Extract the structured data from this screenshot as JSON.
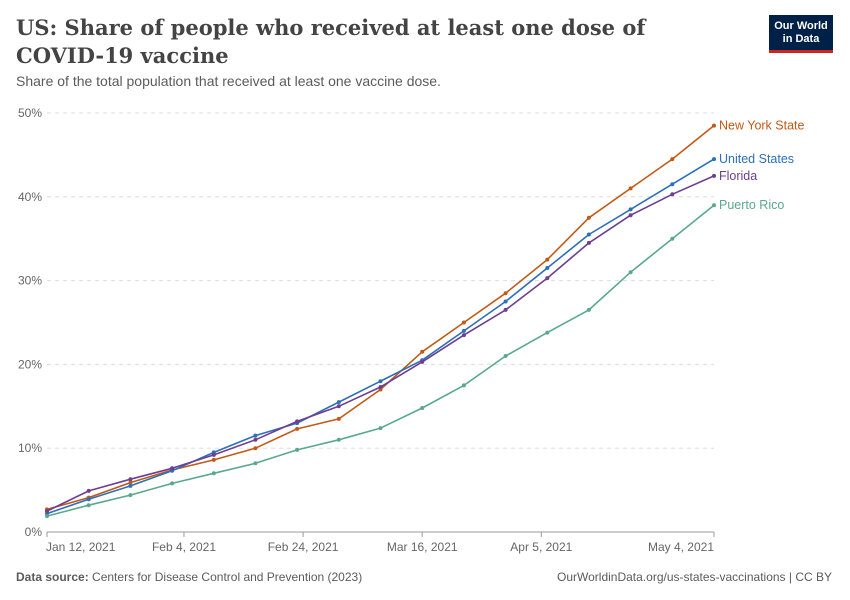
{
  "header": {
    "title": "US: Share of people who received at least one dose of COVID-19 vaccine",
    "subtitle": "Share of the total population that received at least one vaccine dose."
  },
  "logo": {
    "line1": "Our World",
    "line2": "in Data"
  },
  "footer": {
    "source_label": "Data source:",
    "source_text": "Centers for Disease Control and Prevention (2023)",
    "url_text": "OurWorldinData.org/us-states-vaccinations | CC BY"
  },
  "colors": {
    "new_york": "#c15a17",
    "united_states": "#2d6fb8",
    "florida": "#6d3e91",
    "puerto_rico": "#5aa88f",
    "grid": "#dddddd",
    "axis_text": "#666666"
  },
  "chart_data": {
    "type": "line",
    "title": "US: Share of people who received at least one dose of COVID-19 vaccine",
    "x_axis": {
      "type": "date",
      "start": "2021-01-12",
      "end": "2021-05-04",
      "ticks": [
        {
          "date": "2021-01-12",
          "label": "Jan 12, 2021"
        },
        {
          "date": "2021-02-04",
          "label": "Feb 4, 2021"
        },
        {
          "date": "2021-02-24",
          "label": "Feb 24, 2021"
        },
        {
          "date": "2021-03-16",
          "label": "Mar 16, 2021"
        },
        {
          "date": "2021-04-05",
          "label": "Apr 5, 2021"
        },
        {
          "date": "2021-05-04",
          "label": "May 4, 2021"
        }
      ]
    },
    "y_axis": {
      "ylim": [
        0,
        50
      ],
      "ticks": [
        {
          "value": 0,
          "label": "0%"
        },
        {
          "value": 10,
          "label": "10%"
        },
        {
          "value": 20,
          "label": "20%"
        },
        {
          "value": 30,
          "label": "30%"
        },
        {
          "value": 40,
          "label": "40%"
        },
        {
          "value": 50,
          "label": "50%"
        }
      ]
    },
    "grid": "horizontal-dashed",
    "legend": "end-of-line labels",
    "series": [
      {
        "name": "New York State",
        "color_key": "new_york",
        "points": [
          [
            "2021-01-12",
            2.7
          ],
          [
            "2021-01-19",
            4.1
          ],
          [
            "2021-01-26",
            5.9
          ],
          [
            "2021-02-02",
            7.4
          ],
          [
            "2021-02-09",
            8.6
          ],
          [
            "2021-02-16",
            10.0
          ],
          [
            "2021-02-23",
            12.3
          ],
          [
            "2021-03-02",
            13.5
          ],
          [
            "2021-03-09",
            17.0
          ],
          [
            "2021-03-16",
            21.5
          ],
          [
            "2021-03-23",
            25.0
          ],
          [
            "2021-03-30",
            28.5
          ],
          [
            "2021-04-06",
            32.5
          ],
          [
            "2021-04-13",
            37.5
          ],
          [
            "2021-04-20",
            41.0
          ],
          [
            "2021-04-27",
            44.5
          ],
          [
            "2021-05-04",
            48.5
          ]
        ]
      },
      {
        "name": "United States",
        "color_key": "united_states",
        "points": [
          [
            "2021-01-12",
            2.2
          ],
          [
            "2021-01-19",
            3.9
          ],
          [
            "2021-01-26",
            5.5
          ],
          [
            "2021-02-02",
            7.3
          ],
          [
            "2021-02-09",
            9.5
          ],
          [
            "2021-02-16",
            11.5
          ],
          [
            "2021-02-23",
            13.0
          ],
          [
            "2021-03-02",
            15.5
          ],
          [
            "2021-03-09",
            18.0
          ],
          [
            "2021-03-16",
            20.5
          ],
          [
            "2021-03-23",
            24.0
          ],
          [
            "2021-03-30",
            27.5
          ],
          [
            "2021-04-06",
            31.5
          ],
          [
            "2021-04-13",
            35.5
          ],
          [
            "2021-04-20",
            38.5
          ],
          [
            "2021-04-27",
            41.5
          ],
          [
            "2021-05-04",
            44.5
          ]
        ]
      },
      {
        "name": "Florida",
        "color_key": "florida",
        "points": [
          [
            "2021-01-12",
            2.5
          ],
          [
            "2021-01-19",
            4.9
          ],
          [
            "2021-01-26",
            6.3
          ],
          [
            "2021-02-02",
            7.6
          ],
          [
            "2021-02-09",
            9.2
          ],
          [
            "2021-02-16",
            11.0
          ],
          [
            "2021-02-23",
            13.2
          ],
          [
            "2021-03-02",
            15.0
          ],
          [
            "2021-03-09",
            17.3
          ],
          [
            "2021-03-16",
            20.3
          ],
          [
            "2021-03-23",
            23.5
          ],
          [
            "2021-03-30",
            26.5
          ],
          [
            "2021-04-06",
            30.3
          ],
          [
            "2021-04-13",
            34.5
          ],
          [
            "2021-04-20",
            37.8
          ],
          [
            "2021-04-27",
            40.3
          ],
          [
            "2021-05-04",
            42.5
          ]
        ]
      },
      {
        "name": "Puerto Rico",
        "color_key": "puerto_rico",
        "points": [
          [
            "2021-01-12",
            1.9
          ],
          [
            "2021-01-19",
            3.2
          ],
          [
            "2021-01-26",
            4.4
          ],
          [
            "2021-02-02",
            5.8
          ],
          [
            "2021-02-09",
            7.0
          ],
          [
            "2021-02-16",
            8.2
          ],
          [
            "2021-02-23",
            9.8
          ],
          [
            "2021-03-02",
            11.0
          ],
          [
            "2021-03-09",
            12.4
          ],
          [
            "2021-03-16",
            14.8
          ],
          [
            "2021-03-23",
            17.5
          ],
          [
            "2021-03-30",
            21.0
          ],
          [
            "2021-04-06",
            23.8
          ],
          [
            "2021-04-13",
            26.5
          ],
          [
            "2021-04-20",
            31.0
          ],
          [
            "2021-04-27",
            35.0
          ],
          [
            "2021-05-04",
            39.0
          ]
        ]
      }
    ]
  }
}
